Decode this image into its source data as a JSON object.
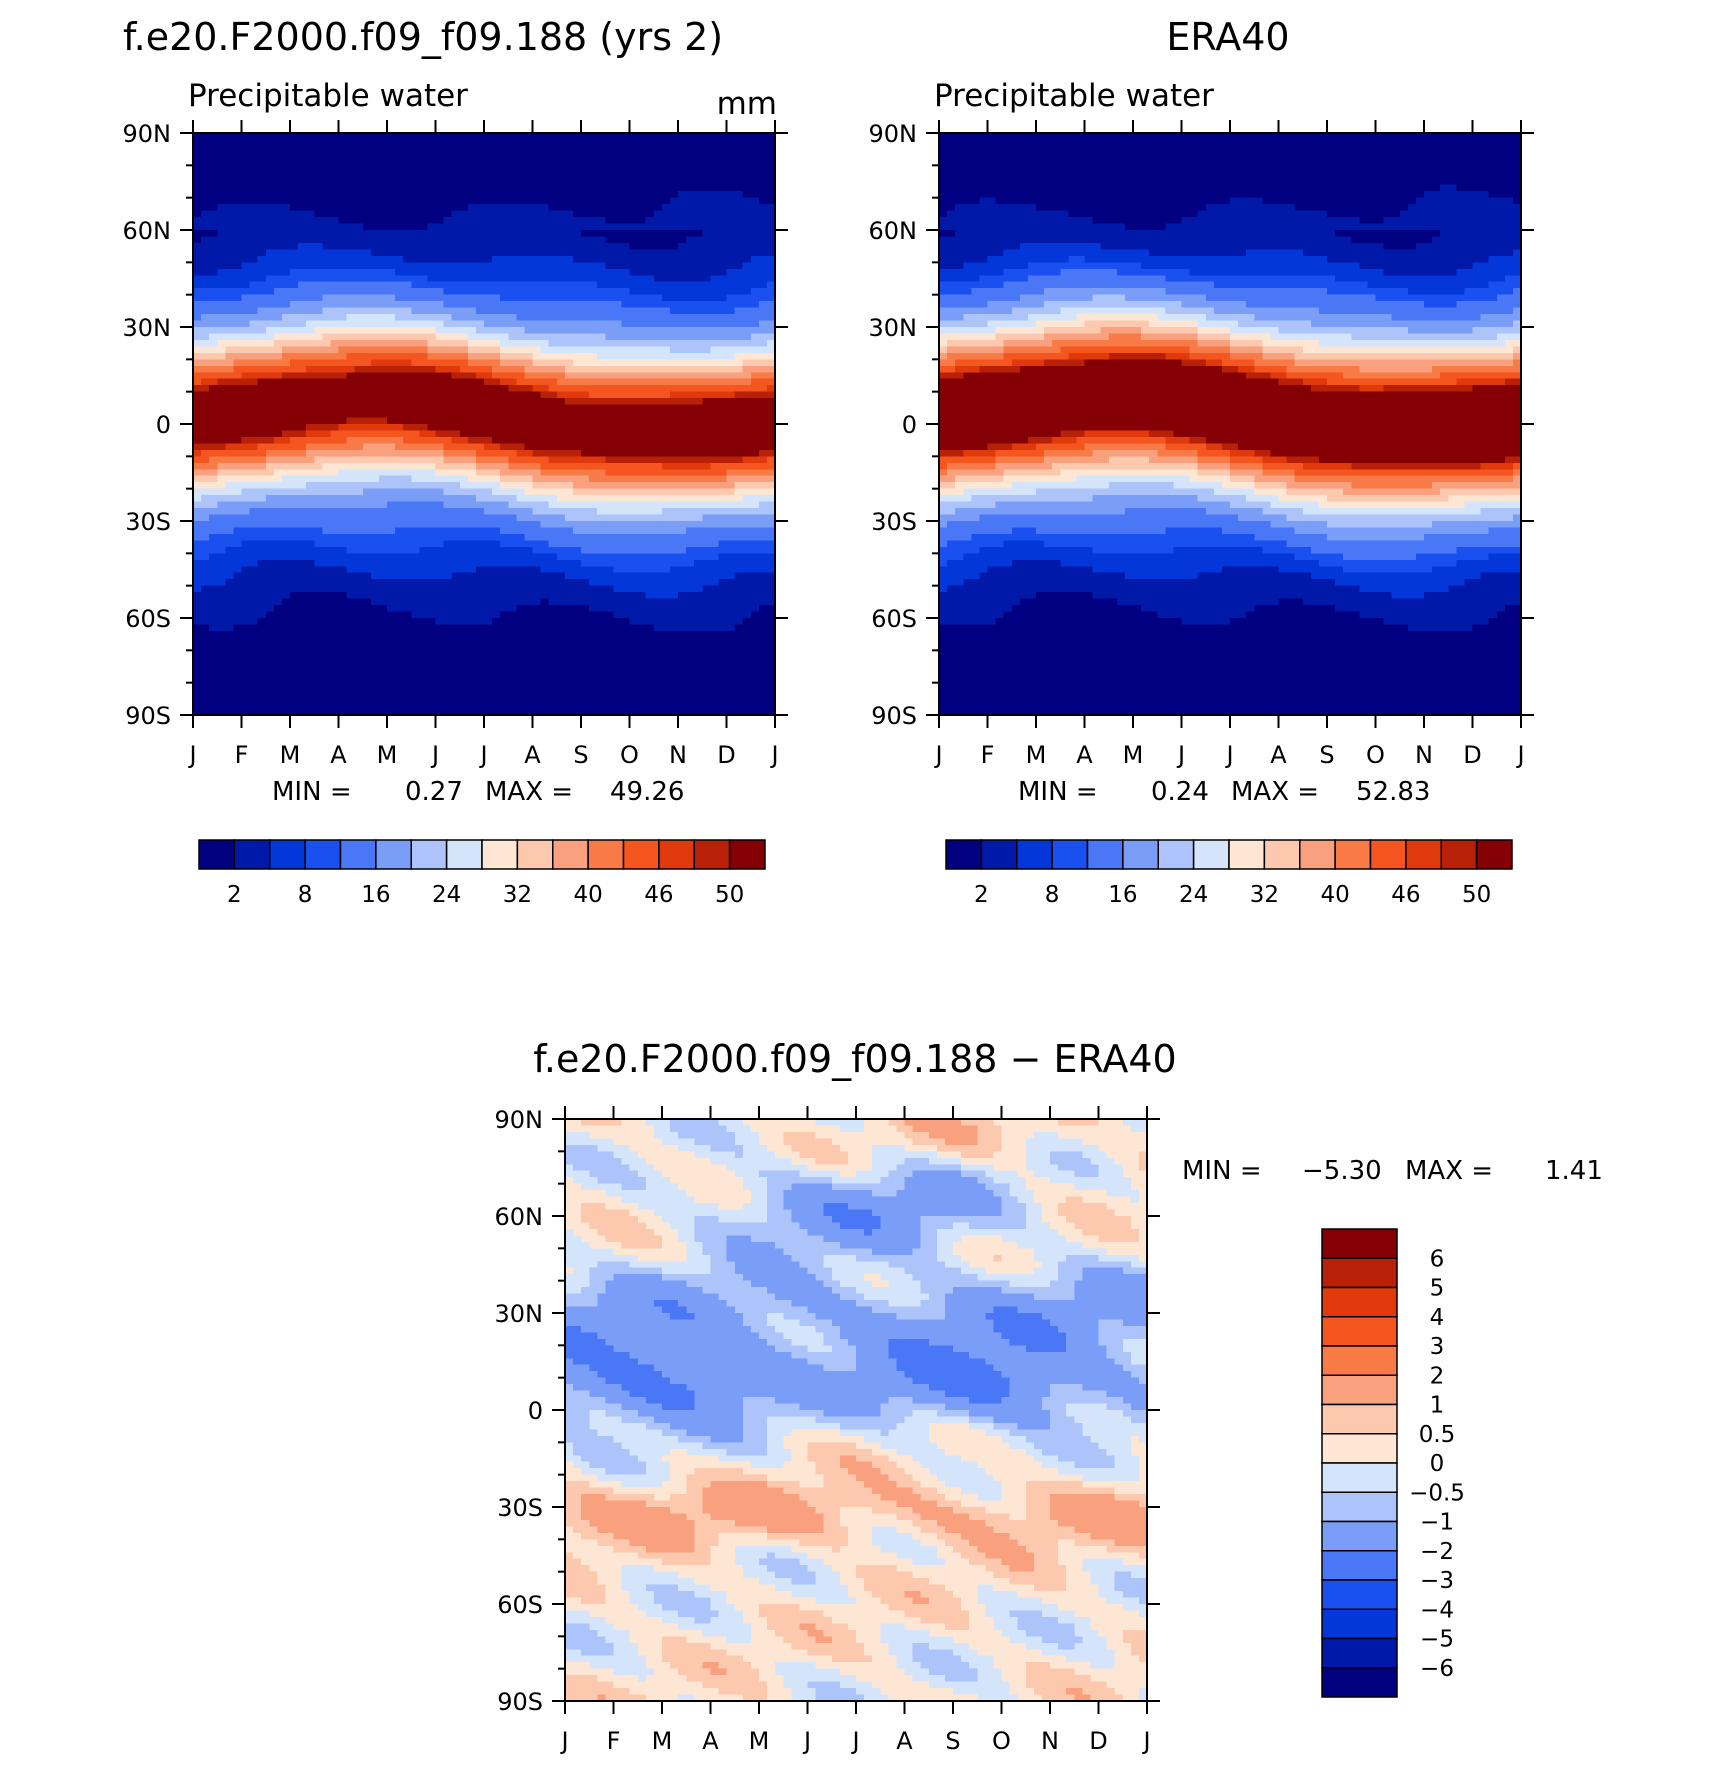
{
  "colors": {
    "abs_palette": [
      "#000080",
      "#0019a8",
      "#0337d9",
      "#1a50f0",
      "#4a77f5",
      "#7a9ef7",
      "#acc4fa",
      "#d4e4fb",
      "#fde7d4",
      "#fcc9ae",
      "#f9a07f",
      "#f87a47",
      "#f5551e",
      "#e03a0c",
      "#b82007",
      "#850005"
    ],
    "diff_palette": [
      "#000080",
      "#0019a8",
      "#0337d9",
      "#1a50f0",
      "#4a77f5",
      "#7a9ef7",
      "#acc4fa",
      "#d4e4fb",
      "#fde7d4",
      "#fcc9ae",
      "#f9a07f",
      "#f87a47",
      "#f5551e",
      "#e03a0c",
      "#b82007",
      "#850005"
    ]
  },
  "chart_data": [
    {
      "type": "heatmap",
      "title": "f.e20.F2000.f09_f09.188 (yrs 2)",
      "subtitle": "Precipitable water",
      "units": "mm",
      "x_ticks": [
        "J",
        "F",
        "M",
        "A",
        "M",
        "J",
        "J",
        "A",
        "S",
        "O",
        "N",
        "D",
        "J"
      ],
      "y_ticks": [
        "90N",
        "60N",
        "30N",
        "0",
        "30S",
        "60S",
        "90S"
      ],
      "ylim": [
        -90,
        90
      ],
      "stats": {
        "min_label": "MIN =",
        "min_value": "0.27",
        "max_label": "MAX =",
        "max_value": "49.26"
      },
      "colorbar_labels": [
        "2",
        "8",
        "16",
        "24",
        "32",
        "40",
        "46",
        "50"
      ],
      "contour_levels": [
        2,
        4,
        6,
        8,
        12,
        16,
        20,
        24,
        28,
        32,
        36,
        40,
        44,
        46,
        48,
        50
      ],
      "field": {
        "equator_max": 48,
        "itcz_lat_jan": -3,
        "itcz_lat_jul": 9,
        "width": 17,
        "base": 0.8
      }
    },
    {
      "type": "heatmap",
      "title": "ERA40",
      "subtitle": "Precipitable water",
      "units": "",
      "x_ticks": [
        "J",
        "F",
        "M",
        "A",
        "M",
        "J",
        "J",
        "A",
        "S",
        "O",
        "N",
        "D",
        "J"
      ],
      "y_ticks": [
        "90N",
        "60N",
        "30N",
        "0",
        "30S",
        "60S",
        "90S"
      ],
      "ylim": [
        -90,
        90
      ],
      "stats": {
        "min_label": "MIN =",
        "min_value": "0.24",
        "max_label": "MAX =",
        "max_value": "52.83"
      },
      "colorbar_labels": [
        "2",
        "8",
        "16",
        "24",
        "32",
        "40",
        "46",
        "50"
      ],
      "contour_levels": [
        2,
        4,
        6,
        8,
        12,
        16,
        20,
        24,
        28,
        32,
        36,
        40,
        44,
        46,
        48,
        50
      ],
      "field": {
        "equator_max": 52.5,
        "itcz_lat_jan": -2,
        "itcz_lat_jul": 10,
        "width": 18.5,
        "base": 0.7
      }
    },
    {
      "type": "heatmap",
      "title": "f.e20.F2000.f09_f09.188 − ERA40",
      "subtitle": "",
      "units": "",
      "x_ticks": [
        "J",
        "F",
        "M",
        "A",
        "M",
        "J",
        "J",
        "A",
        "S",
        "O",
        "N",
        "D",
        "J"
      ],
      "y_ticks": [
        "90N",
        "60N",
        "30N",
        "0",
        "30S",
        "60S",
        "90S"
      ],
      "ylim": [
        -90,
        90
      ],
      "stats": {
        "min_label": "MIN =",
        "min_value": "−5.30",
        "max_label": "MAX =",
        "max_value": "1.41"
      },
      "colorbar_labels": [
        "6",
        "5",
        "4",
        "3",
        "2",
        "1",
        "0.5",
        "0",
        "−0.5",
        "−1",
        "−2",
        "−3",
        "−4",
        "−5",
        "−6"
      ],
      "contour_levels": [
        -6,
        -5,
        -4,
        -3,
        -2,
        -1,
        -0.5,
        0,
        0.5,
        1,
        2,
        3,
        4,
        5,
        6
      ]
    }
  ]
}
